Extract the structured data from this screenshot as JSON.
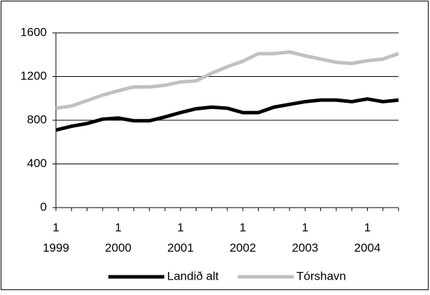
{
  "chart_data": {
    "type": "line",
    "categories": [
      "1\n1999",
      null,
      null,
      null,
      "1\n2000",
      null,
      null,
      null,
      "1\n2001",
      null,
      null,
      null,
      "1\n2002",
      null,
      null,
      null,
      "1\n2003",
      null,
      null,
      null,
      "1\n2004",
      null,
      null
    ],
    "series": [
      {
        "name": "Landið alt",
        "color": "#000000",
        "values": [
          710,
          745,
          770,
          810,
          820,
          795,
          795,
          830,
          870,
          905,
          920,
          910,
          870,
          870,
          920,
          945,
          970,
          985,
          985,
          970,
          995,
          970,
          985
        ]
      },
      {
        "name": "Tórshavn",
        "color": "#c0c0c0",
        "values": [
          910,
          930,
          980,
          1030,
          1070,
          1105,
          1105,
          1120,
          1150,
          1160,
          1230,
          1290,
          1340,
          1410,
          1410,
          1425,
          1390,
          1360,
          1330,
          1320,
          1345,
          1360,
          1410
        ]
      }
    ],
    "ylim": [
      0,
      1600
    ],
    "yticks": [
      0,
      400,
      800,
      1200,
      1600
    ],
    "grid": true,
    "legend": "bottom"
  }
}
